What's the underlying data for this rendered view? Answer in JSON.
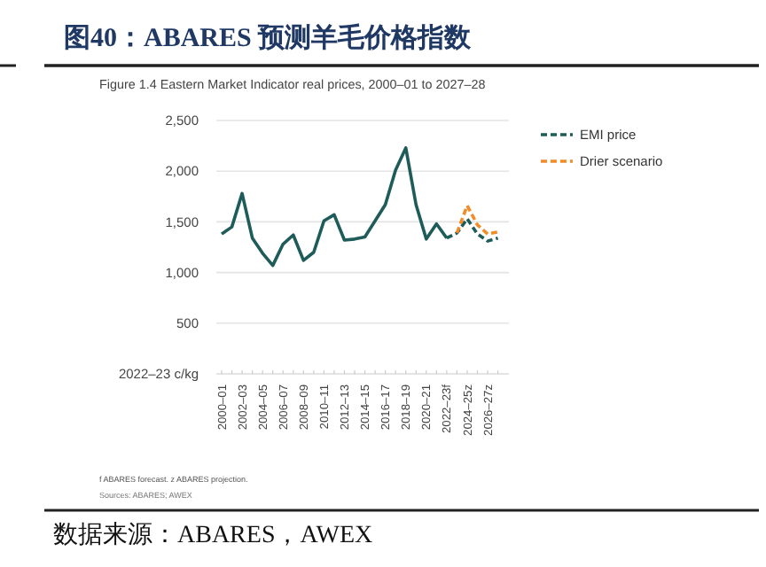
{
  "chart_data": {
    "type": "line",
    "title": "图40：ABARES 预测羊毛价格指数",
    "subtitle": "Figure 1.4 Eastern Market Indicator real prices, 2000–01 to 2027–28",
    "ylabel": "2022–23 c/kg",
    "categories": [
      "2000–01",
      null,
      "2002–03",
      null,
      "2004–05",
      null,
      "2006–07",
      null,
      "2008–09",
      null,
      "2010–11",
      null,
      "2012–13",
      null,
      "2014–15",
      null,
      "2016–17",
      null,
      "2018–19",
      null,
      "2020–21",
      null,
      "2022–23f",
      null,
      "2024–25z",
      null,
      "2026–27z",
      null
    ],
    "series": [
      {
        "color": "#1e5c5a",
        "line_style": "solid",
        "values": [
          1380,
          1450,
          1780,
          1340,
          1190,
          1070,
          1280,
          1370,
          1120,
          1200,
          1510,
          1570,
          1320,
          1330,
          1350,
          1510,
          1670,
          2010,
          2230,
          1670,
          1330,
          1480,
          1340,
          null,
          null,
          null,
          null,
          null
        ]
      },
      {
        "name": "EMI price",
        "color": "#1e5c5a",
        "line_style": "dashed",
        "values": [
          null,
          null,
          null,
          null,
          null,
          null,
          null,
          null,
          null,
          null,
          null,
          null,
          null,
          null,
          null,
          null,
          null,
          null,
          null,
          null,
          null,
          null,
          1340,
          1390,
          1530,
          1380,
          1310,
          1340
        ]
      },
      {
        "name": "Drier scenario",
        "color": "#f28c28",
        "line_style": "dashed",
        "values": [
          null,
          null,
          null,
          null,
          null,
          null,
          null,
          null,
          null,
          null,
          null,
          null,
          null,
          null,
          null,
          null,
          null,
          null,
          null,
          null,
          null,
          null,
          null,
          1390,
          1660,
          1470,
          1380,
          1400
        ]
      }
    ],
    "ylim": [
      0,
      2500
    ],
    "yticks": [
      {
        "value": 0,
        "label": null
      },
      500,
      {
        "value": 1000,
        "label": "1,000"
      },
      {
        "value": 1500,
        "label": "1,500"
      },
      {
        "value": 2000,
        "label": "2,000"
      },
      {
        "value": 2500,
        "label": "2,500"
      }
    ],
    "grid": "y",
    "legend": "right",
    "marker": "none",
    "annotations": [
      "f ABARES forecast. z ABARES projection.",
      "Sources: ABARES; AWEX",
      "数据来源：ABARES，AWEX"
    ]
  }
}
